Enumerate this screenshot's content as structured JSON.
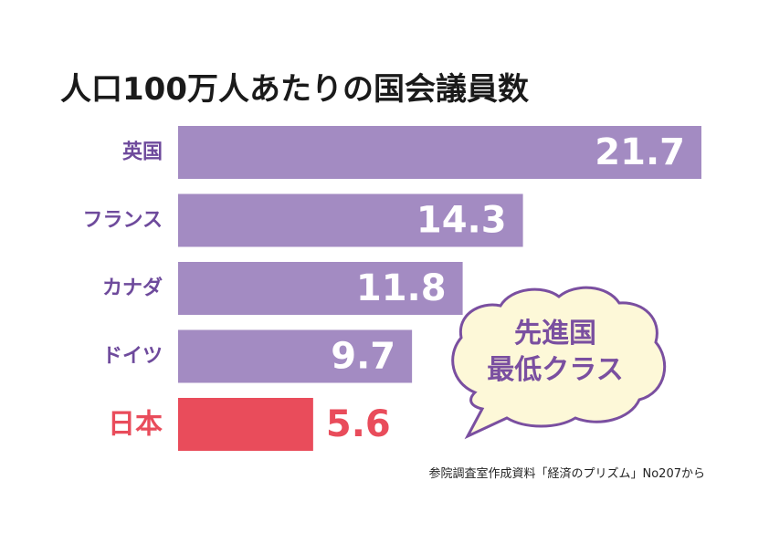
{
  "title": "人口100万人あたりの国会議員数",
  "source": "参院調査室作成資料「経済のプリズム」No207から",
  "callout": {
    "line1": "先進国",
    "line2": "最低クラス"
  },
  "colors": {
    "bar": "#a38bc2",
    "highlight": "#e94c5b",
    "label": "#6e4a9c",
    "bubble_fill": "#fdf8d8",
    "bubble_stroke": "#7a4fa0"
  },
  "chart_data": {
    "type": "bar",
    "orientation": "horizontal",
    "title": "人口100万人あたりの国会議員数",
    "categories": [
      "英国",
      "フランス",
      "カナダ",
      "ドイツ",
      "日本"
    ],
    "values": [
      21.7,
      14.3,
      11.8,
      9.7,
      5.6
    ],
    "value_labels": [
      "21.7",
      "14.3",
      "11.8",
      "9.7",
      "5.6"
    ],
    "highlight": "日本",
    "xlabel": "",
    "ylabel": "",
    "xlim": [
      0,
      21.7
    ],
    "grid": false
  }
}
